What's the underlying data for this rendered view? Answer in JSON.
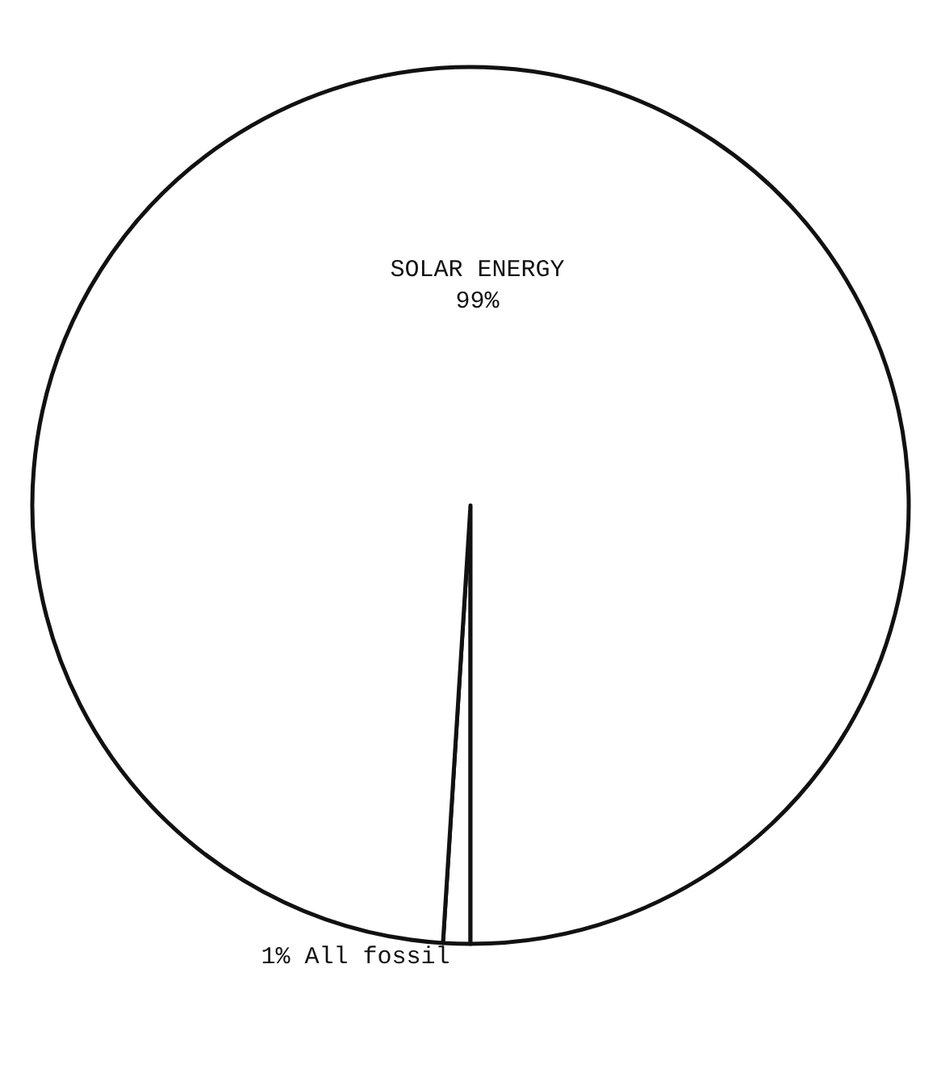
{
  "chart_data": {
    "type": "pie",
    "categories": [
      "All fossil",
      "SOLAR ENERGY"
    ],
    "values": [
      1,
      99
    ],
    "value_labels": [
      "1%",
      "99%"
    ],
    "colors": [
      "#ffffff",
      "#ffffff"
    ],
    "legend": false
  }
}
